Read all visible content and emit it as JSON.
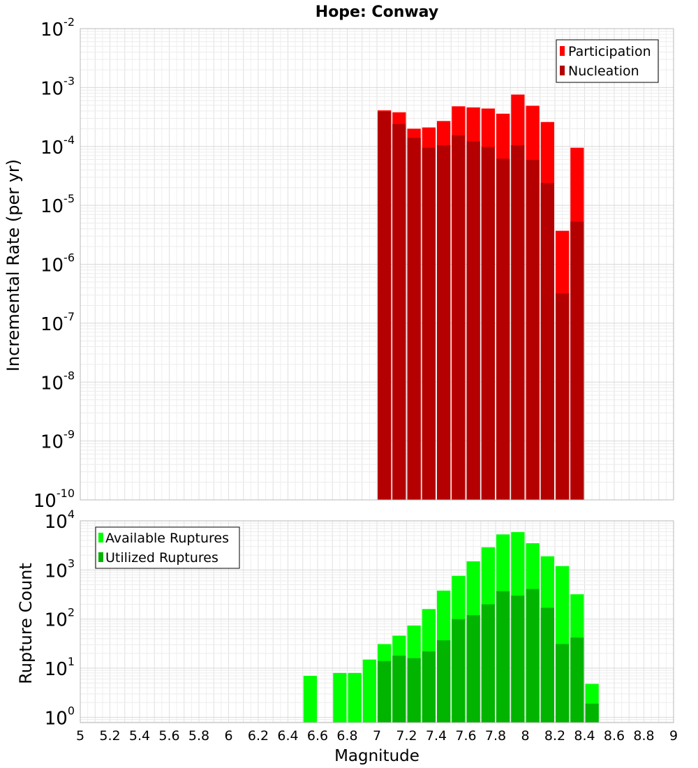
{
  "chart_data": [
    {
      "type": "bar",
      "title": "Hope: Conway",
      "ylabel": "Incremental Rate (per yr)",
      "xlabel": "",
      "yscale": "log",
      "ylim": [
        1e-10,
        0.01
      ],
      "xlim": [
        5,
        9
      ],
      "bin_width": 0.1,
      "y_ticks": [
        {
          "base": "10",
          "exp": "-10"
        },
        {
          "base": "10",
          "exp": "-9"
        },
        {
          "base": "10",
          "exp": "-8"
        },
        {
          "base": "10",
          "exp": "-7"
        },
        {
          "base": "10",
          "exp": "-6"
        },
        {
          "base": "10",
          "exp": "-5"
        },
        {
          "base": "10",
          "exp": "-4"
        },
        {
          "base": "10",
          "exp": "-3"
        },
        {
          "base": "10",
          "exp": "-2"
        }
      ],
      "legend_position": "top-right",
      "x": [
        7.05,
        7.15,
        7.25,
        7.35,
        7.45,
        7.55,
        7.65,
        7.75,
        7.85,
        7.95,
        8.05,
        8.15,
        8.25,
        8.35
      ],
      "series": [
        {
          "name": "Participation",
          "color": "#ff0000",
          "values": [
            0.00041,
            0.00038,
            0.0002,
            0.00021,
            0.00027,
            0.00048,
            0.00046,
            0.00044,
            0.00036,
            0.00076,
            0.00049,
            0.00026,
            3.7e-06,
            9.5e-05
          ]
        },
        {
          "name": "Nucleation",
          "color": "#b40000",
          "values": [
            0.00039,
            0.00024,
            0.00014,
            9.5e-05,
            0.000105,
            0.000155,
            0.000122,
            9.8e-05,
            6.2e-05,
            0.000105,
            5.9e-05,
            2.4e-05,
            3.2e-07,
            5.3e-06
          ]
        }
      ]
    },
    {
      "type": "bar",
      "title": "",
      "ylabel": "Rupture Count",
      "xlabel": "Magnitude",
      "yscale": "log",
      "ylim": [
        0.78,
        10000
      ],
      "xlim": [
        5,
        9
      ],
      "bin_width": 0.1,
      "y_ticks": [
        {
          "base": "10",
          "exp": "0",
          "value": 1
        },
        {
          "base": "10",
          "exp": "1",
          "value": 10
        },
        {
          "base": "10",
          "exp": "2",
          "value": 100
        },
        {
          "base": "10",
          "exp": "3",
          "value": 1000
        },
        {
          "base": "10",
          "exp": "4",
          "value": 10000
        }
      ],
      "x_ticks": [
        "5",
        "5.2",
        "5.4",
        "5.6",
        "5.8",
        "6",
        "6.2",
        "6.4",
        "6.6",
        "6.8",
        "7",
        "7.2",
        "7.4",
        "7.6",
        "7.8",
        "8",
        "8.2",
        "8.4",
        "8.6",
        "8.8",
        "9"
      ],
      "legend_position": "top-left",
      "x": [
        6.55,
        6.75,
        6.85,
        6.95,
        7.05,
        7.15,
        7.25,
        7.35,
        7.45,
        7.55,
        7.65,
        7.75,
        7.85,
        7.95,
        8.05,
        8.15,
        8.25,
        8.35,
        8.45
      ],
      "series": [
        {
          "name": "Available Ruptures",
          "color": "#00ff00",
          "values": [
            7,
            8,
            8,
            15,
            31,
            46,
            74,
            160,
            380,
            760,
            1500,
            2900,
            5300,
            5900,
            3500,
            1900,
            1200,
            320,
            4.8
          ]
        },
        {
          "name": "Utilized Ruptures",
          "color": "#00b400",
          "values": [
            null,
            null,
            null,
            null,
            14,
            18,
            16,
            22,
            37,
            100,
            120,
            200,
            370,
            300,
            410,
            170,
            31,
            42,
            1.9
          ]
        }
      ]
    }
  ]
}
